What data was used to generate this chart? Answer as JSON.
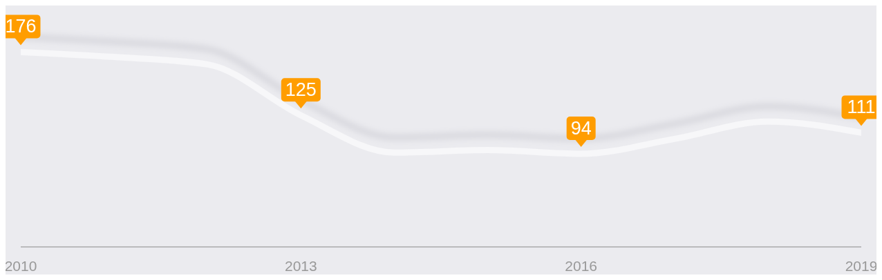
{
  "chart_data": {
    "type": "line",
    "x": [
      2010,
      2011,
      2012,
      2013,
      2014,
      2015,
      2016,
      2017,
      2018,
      2019
    ],
    "xlim": [
      2010,
      2019
    ],
    "xticks": [
      2010,
      2013,
      2016,
      2019
    ],
    "grid": false,
    "legend": false,
    "series": [
      {
        "color": "#f7f7f9",
        "values": [
          176,
          172,
          166,
          125,
          95,
          97,
          94,
          106,
          120,
          111
        ],
        "value_labels": [
          "176",
          null,
          null,
          "125",
          null,
          null,
          "94",
          null,
          null,
          "111"
        ]
      }
    ]
  }
}
